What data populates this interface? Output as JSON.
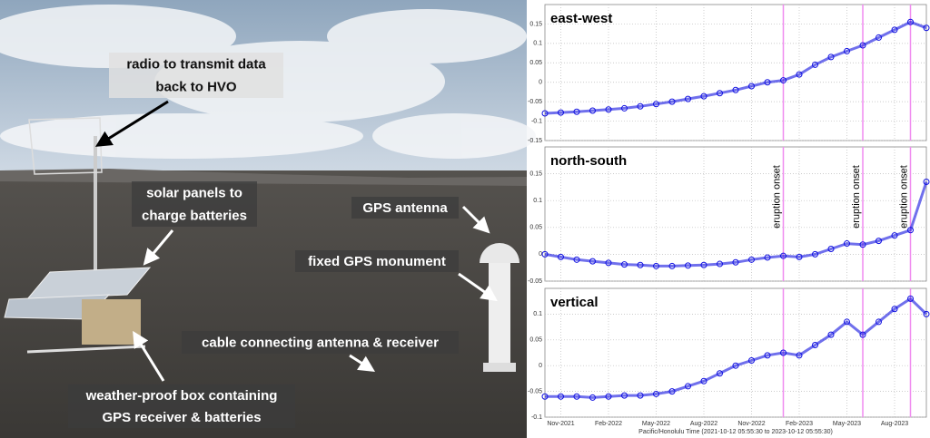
{
  "photo": {
    "labels": [
      {
        "lines": [
          "radio to transmit data",
          "back to HVO"
        ]
      },
      {
        "lines": [
          "solar panels to",
          "charge batteries"
        ]
      },
      {
        "lines": [
          "GPS antenna"
        ]
      },
      {
        "lines": [
          "fixed GPS monument"
        ]
      },
      {
        "lines": [
          "cable connecting antenna & receiver"
        ]
      },
      {
        "lines": [
          "weather-proof box containing",
          "GPS receiver & batteries"
        ]
      }
    ]
  },
  "chart_data": [
    {
      "type": "scatter",
      "title": "east-west",
      "color": "#1010e0",
      "grid": true,
      "x": [
        "2021-10",
        "2021-11",
        "2021-12",
        "2022-01",
        "2022-02",
        "2022-03",
        "2022-04",
        "2022-05",
        "2022-06",
        "2022-07",
        "2022-08",
        "2022-09",
        "2022-10",
        "2022-11",
        "2022-12",
        "2023-01",
        "2023-02",
        "2023-03",
        "2023-04",
        "2023-05",
        "2023-06",
        "2023-07",
        "2023-08",
        "2023-09",
        "2023-10"
      ],
      "values": [
        -0.08,
        -0.078,
        -0.076,
        -0.073,
        -0.07,
        -0.067,
        -0.062,
        -0.056,
        -0.05,
        -0.043,
        -0.036,
        -0.028,
        -0.02,
        -0.01,
        0.0,
        0.005,
        0.02,
        0.045,
        0.065,
        0.08,
        0.095,
        0.115,
        0.135,
        0.155,
        0.14
      ],
      "xlim": [
        "2021-10",
        "2023-10"
      ],
      "ylim": [
        -0.15,
        0.2
      ],
      "yticks": [
        -0.15,
        -0.1,
        -0.05,
        0,
        0.05,
        0.1,
        0.15
      ]
    },
    {
      "type": "scatter",
      "title": "north-south",
      "color": "#1010e0",
      "grid": true,
      "x": [
        "2021-10",
        "2021-11",
        "2021-12",
        "2022-01",
        "2022-02",
        "2022-03",
        "2022-04",
        "2022-05",
        "2022-06",
        "2022-07",
        "2022-08",
        "2022-09",
        "2022-10",
        "2022-11",
        "2022-12",
        "2023-01",
        "2023-02",
        "2023-03",
        "2023-04",
        "2023-05",
        "2023-06",
        "2023-07",
        "2023-08",
        "2023-09",
        "2023-10"
      ],
      "values": [
        0.0,
        -0.005,
        -0.01,
        -0.013,
        -0.016,
        -0.019,
        -0.02,
        -0.022,
        -0.022,
        -0.021,
        -0.02,
        -0.018,
        -0.015,
        -0.01,
        -0.006,
        -0.003,
        -0.005,
        0.0,
        0.01,
        0.02,
        0.018,
        0.025,
        0.035,
        0.045,
        0.135
      ],
      "xlim": [
        "2021-10",
        "2023-10"
      ],
      "ylim": [
        -0.05,
        0.2
      ],
      "yticks": [
        -0.05,
        0,
        0.05,
        0.1,
        0.15
      ],
      "annotations": [
        {
          "x": "2023-01",
          "text": "eruption onset"
        },
        {
          "x": "2023-06",
          "text": "eruption onset"
        },
        {
          "x": "2023-09",
          "text": "eruption onset"
        }
      ]
    },
    {
      "type": "scatter",
      "title": "vertical",
      "color": "#1010e0",
      "grid": true,
      "x": [
        "2021-10",
        "2021-11",
        "2021-12",
        "2022-01",
        "2022-02",
        "2022-03",
        "2022-04",
        "2022-05",
        "2022-06",
        "2022-07",
        "2022-08",
        "2022-09",
        "2022-10",
        "2022-11",
        "2022-12",
        "2023-01",
        "2023-02",
        "2023-03",
        "2023-04",
        "2023-05",
        "2023-06",
        "2023-07",
        "2023-08",
        "2023-09",
        "2023-10"
      ],
      "values": [
        -0.06,
        -0.06,
        -0.06,
        -0.062,
        -0.06,
        -0.058,
        -0.058,
        -0.055,
        -0.05,
        -0.04,
        -0.03,
        -0.015,
        0.0,
        0.01,
        0.02,
        0.025,
        0.02,
        0.04,
        0.06,
        0.085,
        0.06,
        0.085,
        0.11,
        0.13,
        0.1
      ],
      "xlim": [
        "2021-10",
        "2023-10"
      ],
      "ylim": [
        -0.1,
        0.15
      ],
      "yticks": [
        -0.1,
        -0.05,
        0,
        0.05,
        0.1
      ],
      "xticks": [
        {
          "value": "2021-11",
          "label": "Nov-2021"
        },
        {
          "value": "2022-02",
          "label": "Feb-2022"
        },
        {
          "value": "2022-05",
          "label": "May-2022"
        },
        {
          "value": "2022-08",
          "label": "Aug-2022"
        },
        {
          "value": "2022-11",
          "label": "Nov-2022"
        },
        {
          "value": "2023-02",
          "label": "Feb-2023"
        },
        {
          "value": "2023-05",
          "label": "May-2023"
        },
        {
          "value": "2023-08",
          "label": "Aug-2023"
        }
      ],
      "xlabel": "Pacific/Honolulu Time (2021-10-12 05:55:30 to 2023-10-12 05:55:30)"
    }
  ]
}
